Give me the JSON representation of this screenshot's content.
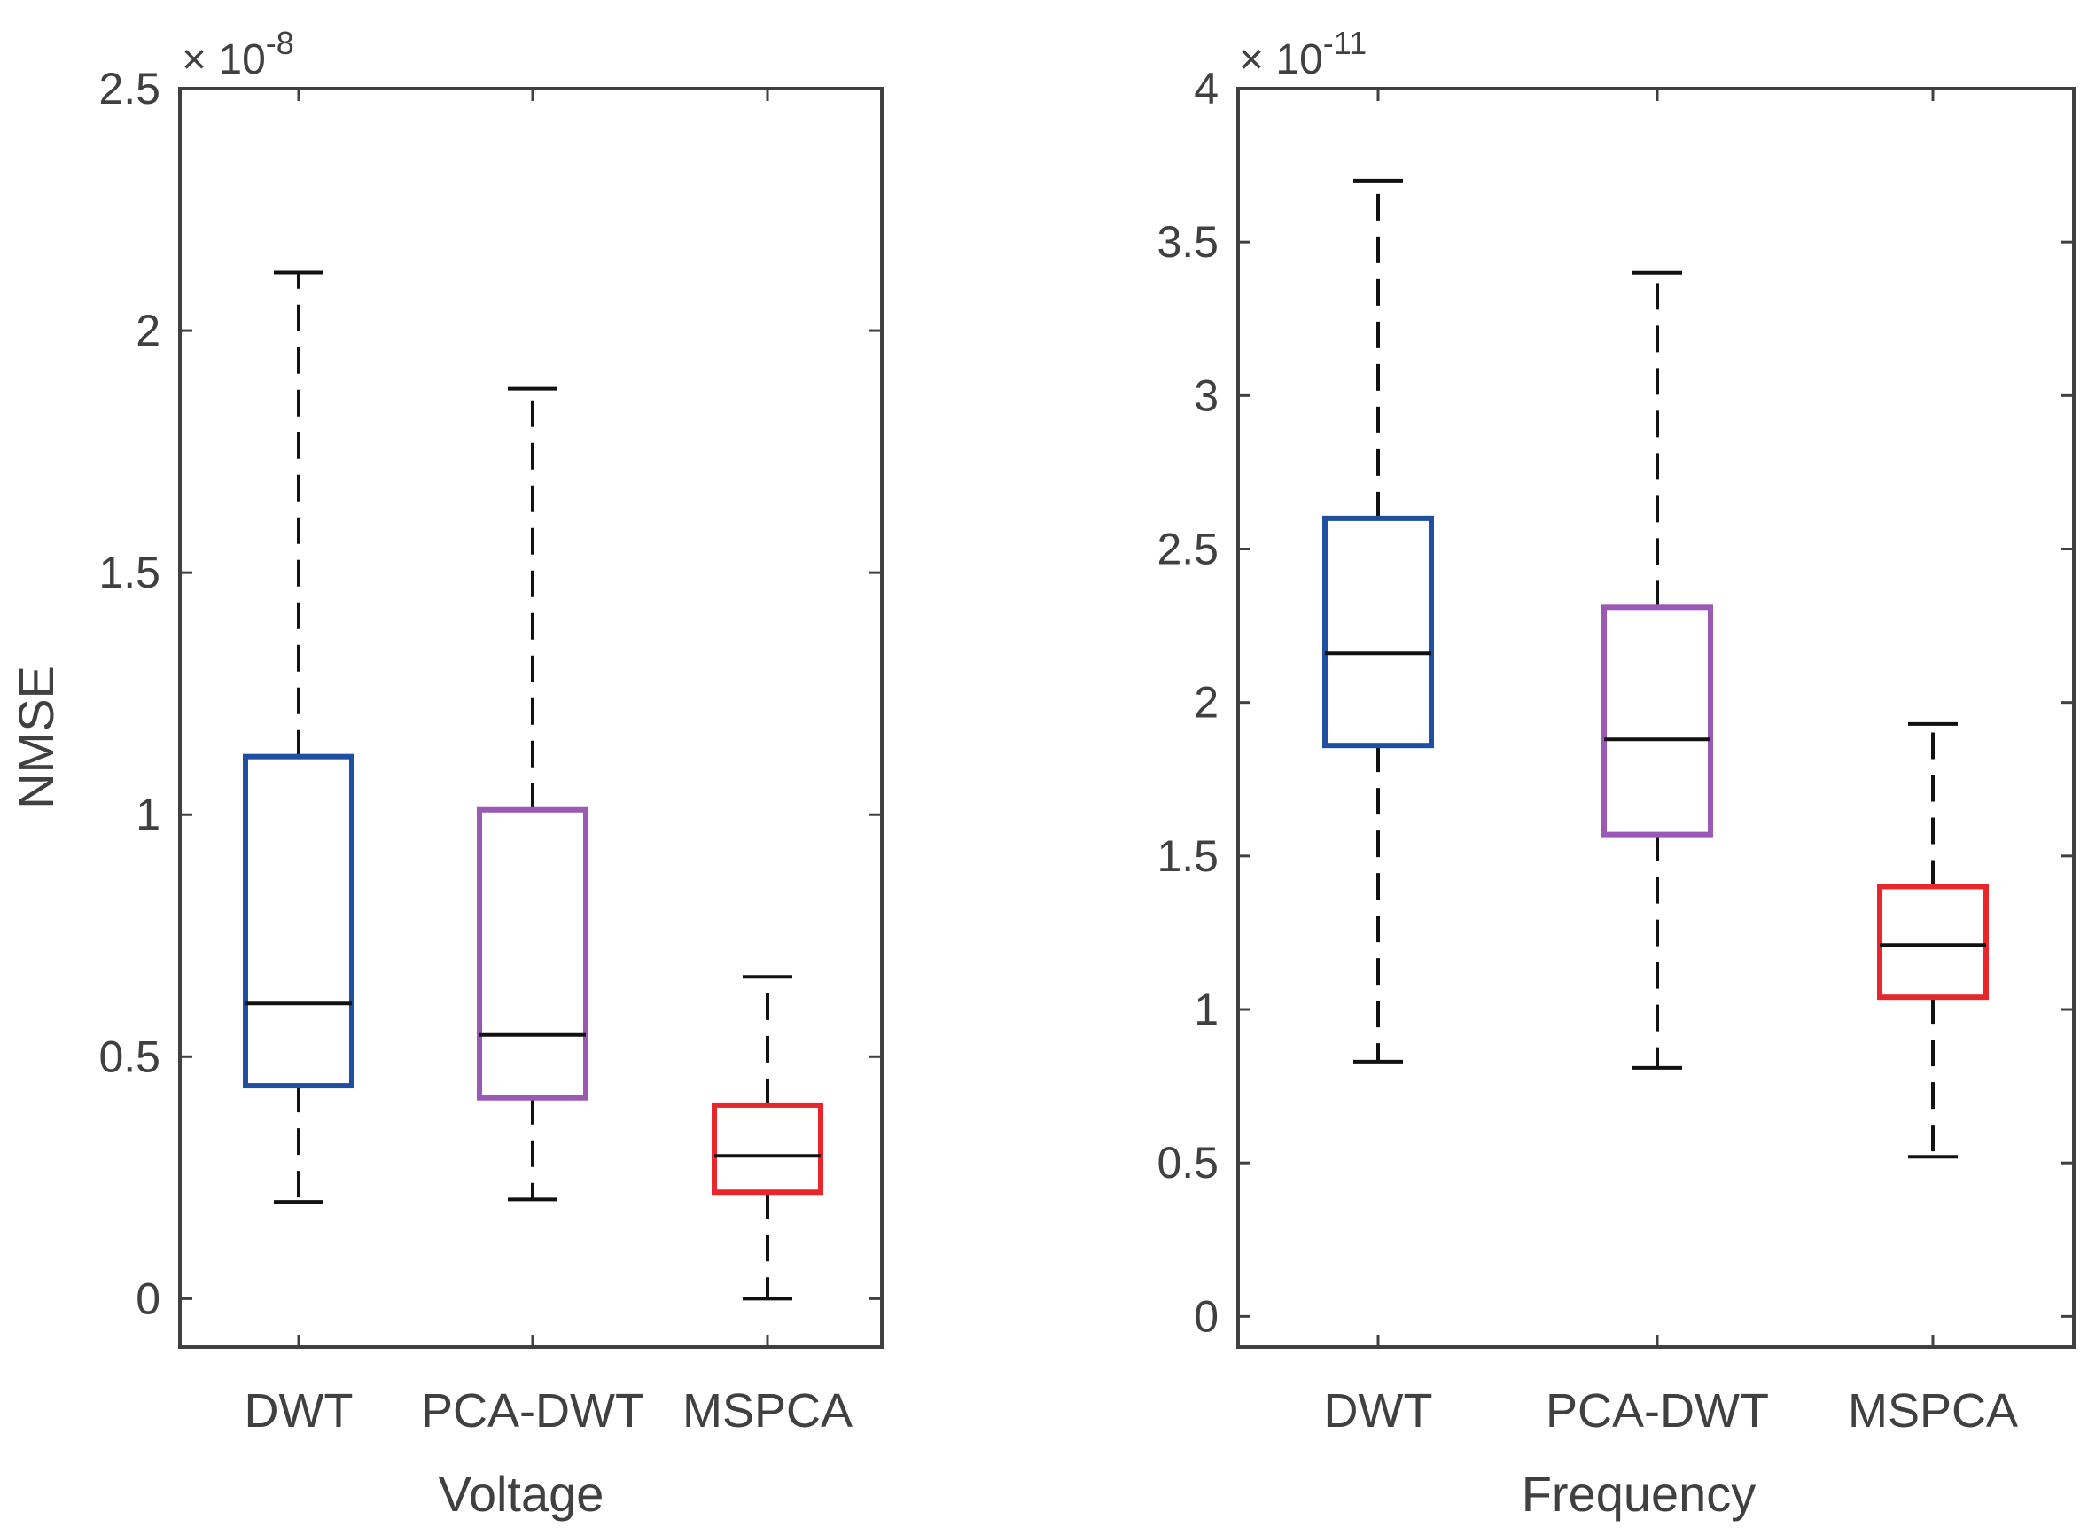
{
  "chart_data": [
    {
      "type": "box",
      "xlabel": "Voltage",
      "ylabel": "NMSE",
      "categories": [
        "DWT",
        "PCA-DWT",
        "MSPCA"
      ],
      "ylim": [
        -0.1,
        2.5
      ],
      "yticks": [
        0,
        0.5,
        1,
        1.5,
        2,
        2.5
      ],
      "ytick_labels": [
        "0",
        "0.5",
        "1",
        "1.5",
        "2",
        "2.5"
      ],
      "exponent_prefix": "× 10",
      "exponent_power": "-8",
      "boxes": [
        {
          "name": "DWT",
          "color": "#1f4fa0",
          "whisker_low": 0.2,
          "q1": 0.44,
          "median": 0.61,
          "q3": 1.12,
          "whisker_high": 2.12
        },
        {
          "name": "PCA-DWT",
          "color": "#9b59b6",
          "whisker_low": 0.205,
          "q1": 0.415,
          "median": 0.545,
          "q3": 1.01,
          "whisker_high": 1.88
        },
        {
          "name": "MSPCA",
          "color": "#e8262b",
          "whisker_low": 0.0,
          "q1": 0.22,
          "median": 0.295,
          "q3": 0.4,
          "whisker_high": 0.665
        }
      ]
    },
    {
      "type": "box",
      "xlabel": "Frequency",
      "ylabel": "",
      "categories": [
        "DWT",
        "PCA-DWT",
        "MSPCA"
      ],
      "ylim": [
        -0.1,
        4
      ],
      "yticks": [
        0,
        0.5,
        1,
        1.5,
        2,
        2.5,
        3,
        3.5,
        4
      ],
      "ytick_labels": [
        "0",
        "0.5",
        "1",
        "1.5",
        "2",
        "2.5",
        "3",
        "3.5",
        "4"
      ],
      "exponent_prefix": "× 10",
      "exponent_power": "-11",
      "boxes": [
        {
          "name": "DWT",
          "color": "#1f4fa0",
          "whisker_low": 0.83,
          "q1": 1.86,
          "median": 2.16,
          "q3": 2.6,
          "whisker_high": 3.7
        },
        {
          "name": "PCA-DWT",
          "color": "#9b59b6",
          "whisker_low": 0.81,
          "q1": 1.57,
          "median": 1.88,
          "q3": 2.31,
          "whisker_high": 3.4
        },
        {
          "name": "MSPCA",
          "color": "#e8262b",
          "whisker_low": 0.52,
          "q1": 1.04,
          "median": 1.21,
          "q3": 1.4,
          "whisker_high": 1.93
        }
      ]
    }
  ]
}
